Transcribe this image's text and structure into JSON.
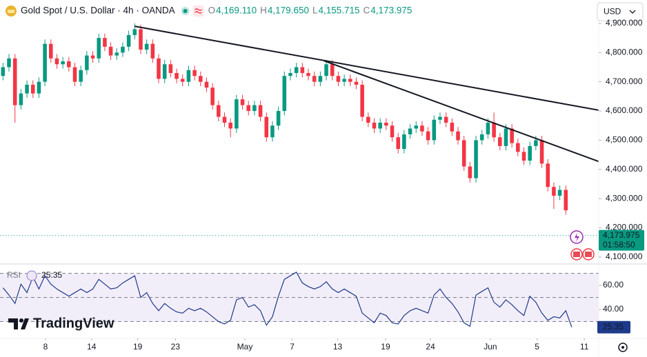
{
  "chart_data": [
    {
      "type": "candlestick",
      "title": "Gold Spot / U.S. Dollar · 4h · OANDA",
      "open": [
        4720,
        4750,
        4780,
        4620,
        4660,
        4690,
        4660,
        4700,
        4830,
        4780,
        4760,
        4770,
        4750,
        4700,
        4740,
        4790,
        4780,
        4850,
        4820,
        4790,
        4800,
        4820,
        4860,
        4880,
        4810,
        4830,
        4780,
        4710,
        4760,
        4730,
        4710,
        4700,
        4740,
        4720,
        4700,
        4680,
        4620,
        4580,
        4560,
        4540,
        4640,
        4620,
        4600,
        4620,
        4580,
        4510,
        4550,
        4600,
        4720,
        4730,
        4750,
        4730,
        4720,
        4700,
        4720,
        4760,
        4720,
        4700,
        4710,
        4700,
        4690,
        4580,
        4560,
        4540,
        4560,
        4550,
        4510,
        4470,
        4520,
        4540,
        4550,
        4530,
        4500,
        4570,
        4580,
        4560,
        4530,
        4500,
        4410,
        4370,
        4500,
        4520,
        4560,
        4510,
        4480,
        4540,
        4490,
        4460,
        4430,
        4480,
        4500,
        4420,
        4340,
        4310,
        4330,
        4169.11
      ],
      "high": [
        4765,
        4795,
        4795,
        4675,
        4705,
        4705,
        4715,
        4845,
        4845,
        4795,
        4785,
        4785,
        4765,
        4755,
        4805,
        4805,
        4865,
        4865,
        4835,
        4815,
        4835,
        4875,
        4900,
        4895,
        4845,
        4845,
        4795,
        4775,
        4775,
        4745,
        4725,
        4755,
        4755,
        4735,
        4715,
        4695,
        4635,
        4595,
        4575,
        4655,
        4655,
        4635,
        4635,
        4635,
        4595,
        4565,
        4615,
        4735,
        4745,
        4765,
        4765,
        4745,
        4735,
        4735,
        4775,
        4775,
        4735,
        4725,
        4725,
        4715,
        4705,
        4595,
        4575,
        4575,
        4575,
        4565,
        4525,
        4535,
        4555,
        4565,
        4565,
        4545,
        4585,
        4595,
        4595,
        4575,
        4545,
        4515,
        4425,
        4515,
        4535,
        4575,
        4595,
        4525,
        4555,
        4555,
        4505,
        4475,
        4495,
        4515,
        4515,
        4435,
        4355,
        4345,
        4345,
        4179.65
      ],
      "low": [
        4705,
        4735,
        4560,
        4605,
        4645,
        4645,
        4645,
        4685,
        4765,
        4745,
        4745,
        4735,
        4685,
        4685,
        4725,
        4765,
        4765,
        4805,
        4775,
        4775,
        4785,
        4805,
        4845,
        4795,
        4795,
        4765,
        4695,
        4695,
        4715,
        4695,
        4685,
        4685,
        4705,
        4685,
        4665,
        4605,
        4565,
        4545,
        4510,
        4525,
        4605,
        4585,
        4585,
        4565,
        4495,
        4495,
        4535,
        4585,
        4705,
        4715,
        4715,
        4705,
        4685,
        4685,
        4705,
        4705,
        4685,
        4685,
        4685,
        4675,
        4565,
        4545,
        4525,
        4525,
        4535,
        4495,
        4455,
        4455,
        4505,
        4525,
        4515,
        4485,
        4485,
        4555,
        4545,
        4515,
        4485,
        4395,
        4355,
        4355,
        4485,
        4505,
        4495,
        4465,
        4465,
        4475,
        4445,
        4415,
        4415,
        4465,
        4405,
        4325,
        4265,
        4295,
        4245,
        4155.715
      ],
      "close": [
        4750,
        4780,
        4620,
        4660,
        4690,
        4660,
        4700,
        4830,
        4780,
        4760,
        4770,
        4750,
        4700,
        4740,
        4790,
        4780,
        4850,
        4820,
        4790,
        4800,
        4820,
        4860,
        4880,
        4810,
        4830,
        4780,
        4710,
        4760,
        4730,
        4710,
        4700,
        4740,
        4720,
        4700,
        4680,
        4620,
        4580,
        4560,
        4540,
        4640,
        4620,
        4600,
        4620,
        4580,
        4510,
        4550,
        4600,
        4720,
        4730,
        4750,
        4730,
        4720,
        4700,
        4720,
        4760,
        4720,
        4700,
        4710,
        4700,
        4690,
        4580,
        4560,
        4540,
        4560,
        4550,
        4510,
        4470,
        4520,
        4540,
        4550,
        4530,
        4500,
        4570,
        4580,
        4560,
        4530,
        4500,
        4410,
        4370,
        4500,
        4520,
        4560,
        4510,
        4480,
        4540,
        4490,
        4460,
        4430,
        4480,
        4500,
        4420,
        4340,
        4310,
        4330,
        4260,
        4173.975
      ],
      "up_color": "#089981",
      "down_color": "#f23645",
      "legend_values": [
        {
          "label": "O",
          "value_label": "4,169.110"
        },
        {
          "label": "H",
          "value_label": "4,179.650"
        },
        {
          "label": "L",
          "value_label": "4,155.715"
        },
        {
          "label": "C",
          "value_label": "4,173.975"
        }
      ],
      "price_label": "4,173.975",
      "countdown": "01:58:50",
      "currency": "USD",
      "xlim": [
        -0.5,
        99.5
      ],
      "xticks": [
        {
          "value": 7.1,
          "label": "8"
        },
        {
          "value": 14.8,
          "label": "14"
        },
        {
          "value": 22.5,
          "label": "19"
        },
        {
          "value": 28.8,
          "label": "23"
        },
        {
          "value": 40.4,
          "label": "May"
        },
        {
          "value": 48.3,
          "label": "7"
        },
        {
          "value": 55.9,
          "label": "13"
        },
        {
          "value": 63.9,
          "label": "19"
        },
        {
          "value": 71.4,
          "label": "24"
        },
        {
          "value": 81.4,
          "label": "Jun"
        },
        {
          "value": 89.2,
          "label": "5"
        },
        {
          "value": 97.1,
          "label": "11"
        }
      ],
      "ylim": [
        4081,
        4980
      ],
      "yticks": [
        {
          "value": 4100,
          "label": "4,100.000"
        },
        {
          "value": 4200,
          "label": "4,200.000"
        },
        {
          "value": 4300,
          "label": "4,300.000"
        },
        {
          "value": 4400,
          "label": "4,400.000"
        },
        {
          "value": 4500,
          "label": "4,500.000"
        },
        {
          "value": 4600,
          "label": "4,600.000"
        },
        {
          "value": 4700,
          "label": "4,700.000"
        },
        {
          "value": 4800,
          "label": "4,800.000"
        },
        {
          "value": 4900,
          "label": "4,900.000"
        }
      ],
      "trendlines": [
        {
          "x": [
            22,
            99.7
          ],
          "y": [
            4890,
            4602
          ]
        },
        {
          "x": [
            53.6,
            99.7
          ],
          "y": [
            4772,
            4425.5
          ]
        }
      ],
      "trendline_color": "#131722"
    },
    {
      "type": "line",
      "title": "RSI",
      "values": [
        58,
        52,
        45,
        61,
        54,
        67,
        57,
        68,
        61,
        57,
        54,
        51,
        54,
        57,
        54,
        57,
        65,
        61,
        57,
        58,
        62,
        65,
        68,
        50,
        54,
        45,
        39,
        45,
        41,
        38,
        37,
        41,
        39,
        41,
        38,
        34,
        30,
        28,
        31,
        48,
        50,
        42,
        44,
        39,
        27,
        34,
        51,
        65,
        68,
        71,
        62,
        59,
        57,
        59,
        63,
        57,
        54,
        57,
        54,
        51,
        37,
        33,
        29,
        37,
        35,
        29,
        28,
        35,
        39,
        41,
        39,
        37,
        52,
        57,
        50,
        45,
        38,
        29,
        26,
        52,
        55,
        58,
        46,
        42,
        48,
        44,
        39,
        35,
        51,
        46,
        37,
        31,
        34,
        33,
        39,
        25.35
      ],
      "color": "#1e3a8a",
      "ylim": [
        16.6,
        74.9
      ],
      "yticks": [
        {
          "value": 40,
          "label": "40.00"
        },
        {
          "value": 60,
          "label": "60.00"
        }
      ],
      "bands": [
        30,
        50,
        70
      ],
      "band_fill": "#7e57c2"
    }
  ],
  "logo": "TradingView"
}
